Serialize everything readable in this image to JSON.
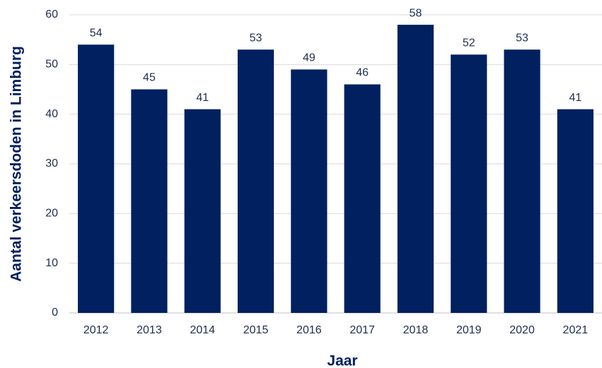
{
  "chart_data": {
    "type": "bar",
    "xlabel": "Jaar",
    "ylabel": "Aantal verkeersdoden in Limburg",
    "categories": [
      "2012",
      "2013",
      "2014",
      "2015",
      "2016",
      "2017",
      "2018",
      "2019",
      "2020",
      "2021"
    ],
    "values": [
      54,
      45,
      41,
      53,
      49,
      46,
      58,
      52,
      53,
      41
    ],
    "color": "#002060",
    "ylim": [
      0,
      60
    ],
    "yticks": [
      0,
      10,
      20,
      30,
      40,
      50,
      60
    ],
    "grid": true
  }
}
